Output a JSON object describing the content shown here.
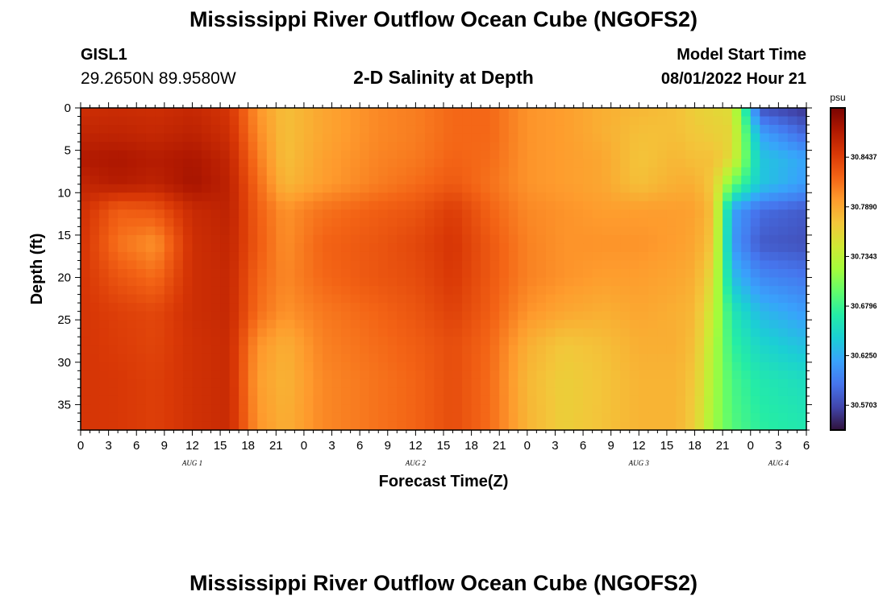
{
  "header": {
    "title": "Mississippi River Outflow Ocean Cube (NGOFS2)",
    "station_id": "GISL1",
    "station_coords": "29.2650N  89.9580W",
    "plot_title": "2-D Salinity at Depth",
    "model_start_label": "Model Start Time",
    "model_start_value": "08/01/2022 Hour 21"
  },
  "footer": {
    "title": "Mississippi River Outflow Ocean Cube (NGOFS2)"
  },
  "chart_data": {
    "type": "heatmap",
    "title": "2-D Salinity at Depth",
    "xlabel": "Forecast Time(Z)",
    "ylabel": "Depth (ft)",
    "x_unit": "forecast hour",
    "xlim": [
      0,
      78
    ],
    "ylim": [
      0,
      38
    ],
    "y_inverted": true,
    "x_ticks": [
      {
        "value": 0,
        "label": "0"
      },
      {
        "value": 3,
        "label": "3"
      },
      {
        "value": 6,
        "label": "6"
      },
      {
        "value": 9,
        "label": "9"
      },
      {
        "value": 12,
        "label": "12"
      },
      {
        "value": 15,
        "label": "15"
      },
      {
        "value": 18,
        "label": "18"
      },
      {
        "value": 21,
        "label": "21"
      },
      {
        "value": 24,
        "label": "0"
      },
      {
        "value": 27,
        "label": "3"
      },
      {
        "value": 30,
        "label": "6"
      },
      {
        "value": 33,
        "label": "9"
      },
      {
        "value": 36,
        "label": "12"
      },
      {
        "value": 39,
        "label": "15"
      },
      {
        "value": 42,
        "label": "18"
      },
      {
        "value": 45,
        "label": "21"
      },
      {
        "value": 48,
        "label": "0"
      },
      {
        "value": 51,
        "label": "3"
      },
      {
        "value": 54,
        "label": "6"
      },
      {
        "value": 57,
        "label": "9"
      },
      {
        "value": 60,
        "label": "12"
      },
      {
        "value": 63,
        "label": "15"
      },
      {
        "value": 66,
        "label": "18"
      },
      {
        "value": 69,
        "label": "21"
      },
      {
        "value": 72,
        "label": "0"
      },
      {
        "value": 75,
        "label": "3"
      },
      {
        "value": 78,
        "label": "6"
      }
    ],
    "date_labels": [
      {
        "value": 12,
        "label": "AUG 1"
      },
      {
        "value": 36,
        "label": "AUG 2"
      },
      {
        "value": 60,
        "label": "AUG 3"
      },
      {
        "value": 75,
        "label": "AUG 4"
      }
    ],
    "y_ticks": [
      0,
      5,
      10,
      15,
      20,
      25,
      30,
      35
    ],
    "colorbar": {
      "unit": "psu",
      "range": [
        30.543,
        30.898
      ],
      "ticks": [
        30.8437,
        30.789,
        30.7343,
        30.6796,
        30.625,
        30.5703
      ],
      "tick_labels": [
        "30.8437",
        "30.7890",
        "30.7343",
        "30.6796",
        "30.6250",
        "30.5703"
      ],
      "stops": [
        "#30123b",
        "#4145ab",
        "#4675ed",
        "#39a2fc",
        "#1bcfd4",
        "#24eca6",
        "#61fc6c",
        "#a4fc3b",
        "#d1e834",
        "#f3c63a",
        "#fe9b2d",
        "#f36315",
        "#d93806",
        "#b11901",
        "#7a0402"
      ]
    },
    "grid_x": [
      0,
      4,
      8,
      12,
      16,
      19,
      22,
      26,
      32,
      36,
      40,
      44,
      48,
      52,
      56,
      60,
      64,
      66,
      68,
      70,
      73,
      78
    ],
    "grid_y": [
      0,
      3,
      6,
      9,
      12,
      16,
      20,
      24,
      28,
      32,
      38
    ],
    "values": [
      [
        30.855,
        30.857,
        30.855,
        30.86,
        30.85,
        30.8,
        30.775,
        30.79,
        30.805,
        30.81,
        30.82,
        30.82,
        30.8,
        30.795,
        30.785,
        30.78,
        30.775,
        30.765,
        30.76,
        30.755,
        30.575,
        30.56
      ],
      [
        30.862,
        30.863,
        30.86,
        30.865,
        30.855,
        30.805,
        30.775,
        30.79,
        30.805,
        30.81,
        30.82,
        30.82,
        30.8,
        30.795,
        30.785,
        30.775,
        30.775,
        30.77,
        30.765,
        30.76,
        30.62,
        30.585
      ],
      [
        30.872,
        30.875,
        30.87,
        30.875,
        30.862,
        30.812,
        30.775,
        30.793,
        30.807,
        30.812,
        30.822,
        30.818,
        30.8,
        30.795,
        30.79,
        30.772,
        30.78,
        30.775,
        30.775,
        30.755,
        30.64,
        30.62
      ],
      [
        30.862,
        30.87,
        30.865,
        30.878,
        30.865,
        30.82,
        30.78,
        30.795,
        30.81,
        30.818,
        30.828,
        30.815,
        30.8,
        30.795,
        30.79,
        30.775,
        30.785,
        30.785,
        30.768,
        30.7,
        30.64,
        30.615
      ],
      [
        30.855,
        30.825,
        30.83,
        30.858,
        30.865,
        30.825,
        30.8,
        30.815,
        30.825,
        30.83,
        30.845,
        30.822,
        30.805,
        30.8,
        30.795,
        30.795,
        30.795,
        30.793,
        30.775,
        30.62,
        30.59,
        30.58
      ],
      [
        30.852,
        30.815,
        30.8,
        30.855,
        30.862,
        30.828,
        30.802,
        30.822,
        30.83,
        30.838,
        30.85,
        30.828,
        30.808,
        30.8,
        30.8,
        30.8,
        30.795,
        30.79,
        30.77,
        30.615,
        30.58,
        30.575
      ],
      [
        30.85,
        30.83,
        30.818,
        30.855,
        30.86,
        30.822,
        30.805,
        30.82,
        30.83,
        30.835,
        30.848,
        30.828,
        30.808,
        30.8,
        30.795,
        30.795,
        30.79,
        30.785,
        30.755,
        30.635,
        30.605,
        30.595
      ],
      [
        30.85,
        30.843,
        30.838,
        30.855,
        30.86,
        30.818,
        30.8,
        30.812,
        30.822,
        30.83,
        30.842,
        30.825,
        30.8,
        30.79,
        30.785,
        30.79,
        30.785,
        30.78,
        30.74,
        30.665,
        30.632,
        30.615
      ],
      [
        30.85,
        30.845,
        30.84,
        30.853,
        30.858,
        30.8,
        30.785,
        30.808,
        30.818,
        30.825,
        30.835,
        30.82,
        30.785,
        30.77,
        30.775,
        30.785,
        30.785,
        30.775,
        30.73,
        30.675,
        30.65,
        30.635
      ],
      [
        30.85,
        30.848,
        30.843,
        30.853,
        30.858,
        30.795,
        30.782,
        30.805,
        30.815,
        30.822,
        30.835,
        30.818,
        30.78,
        30.765,
        30.772,
        30.782,
        30.782,
        30.77,
        30.725,
        30.685,
        30.665,
        30.655
      ],
      [
        30.85,
        30.848,
        30.843,
        30.853,
        30.858,
        30.8,
        30.785,
        30.805,
        30.815,
        30.822,
        30.835,
        30.818,
        30.782,
        30.765,
        30.773,
        30.782,
        30.782,
        30.765,
        30.72,
        30.69,
        30.673,
        30.665
      ]
    ]
  }
}
